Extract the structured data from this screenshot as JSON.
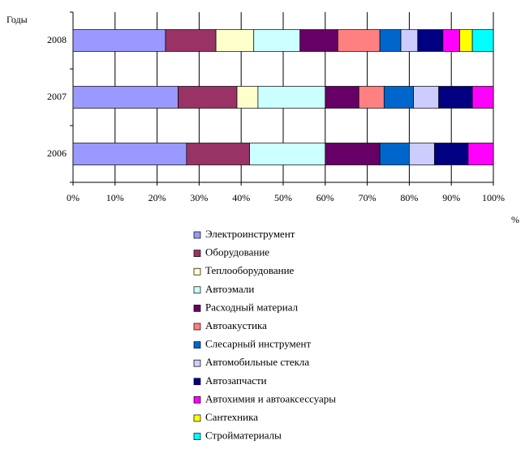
{
  "chart_data": {
    "type": "stacked-barh",
    "y_label": "Годы",
    "x_label": "%",
    "categories": [
      "2008",
      "2007",
      "2006"
    ],
    "series": [
      {
        "name": "Электроинструмент",
        "color": "#9999ff",
        "values": [
          22,
          25,
          27
        ]
      },
      {
        "name": "Оборудование",
        "color": "#993366",
        "values": [
          12,
          14,
          15
        ]
      },
      {
        "name": "Теплооборудование",
        "color": "#ffffcc",
        "values": [
          9,
          5,
          0
        ]
      },
      {
        "name": "Автоэмали",
        "color": "#ccffff",
        "values": [
          11,
          16,
          18
        ]
      },
      {
        "name": "Расходный материал",
        "color": "#660066",
        "values": [
          9,
          8,
          13
        ]
      },
      {
        "name": "Автоакустика",
        "color": "#ff8080",
        "values": [
          10,
          6,
          0
        ]
      },
      {
        "name": "Слесарный инструмент",
        "color": "#0066cc",
        "values": [
          5,
          7,
          7
        ]
      },
      {
        "name": "Автомобильные стекла",
        "color": "#ccccff",
        "values": [
          4,
          6,
          6
        ]
      },
      {
        "name": "Автозапчасти",
        "color": "#000080",
        "values": [
          6,
          8,
          8
        ]
      },
      {
        "name": "Автохимия и автоаксессуары",
        "color": "#ff00ff",
        "values": [
          4,
          5,
          6
        ]
      },
      {
        "name": "Сантехника",
        "color": "#ffff00",
        "values": [
          3,
          0,
          0
        ]
      },
      {
        "name": "Стройматериалы",
        "color": "#00ffff",
        "values": [
          5,
          0,
          0
        ]
      }
    ],
    "xlim": [
      0,
      100
    ],
    "xticks": [
      {
        "value": 0,
        "label": "0%"
      },
      {
        "value": 10,
        "label": "10%"
      },
      {
        "value": 20,
        "label": "20%"
      },
      {
        "value": 30,
        "label": "30%"
      },
      {
        "value": 40,
        "label": "40%"
      },
      {
        "value": 50,
        "label": "50%"
      },
      {
        "value": 60,
        "label": "60%"
      },
      {
        "value": 70,
        "label": "70%"
      },
      {
        "value": 80,
        "label": "80%"
      },
      {
        "value": 90,
        "label": "90%"
      },
      {
        "value": 100,
        "label": "100%"
      }
    ],
    "grid": true,
    "legend": "bottom"
  }
}
